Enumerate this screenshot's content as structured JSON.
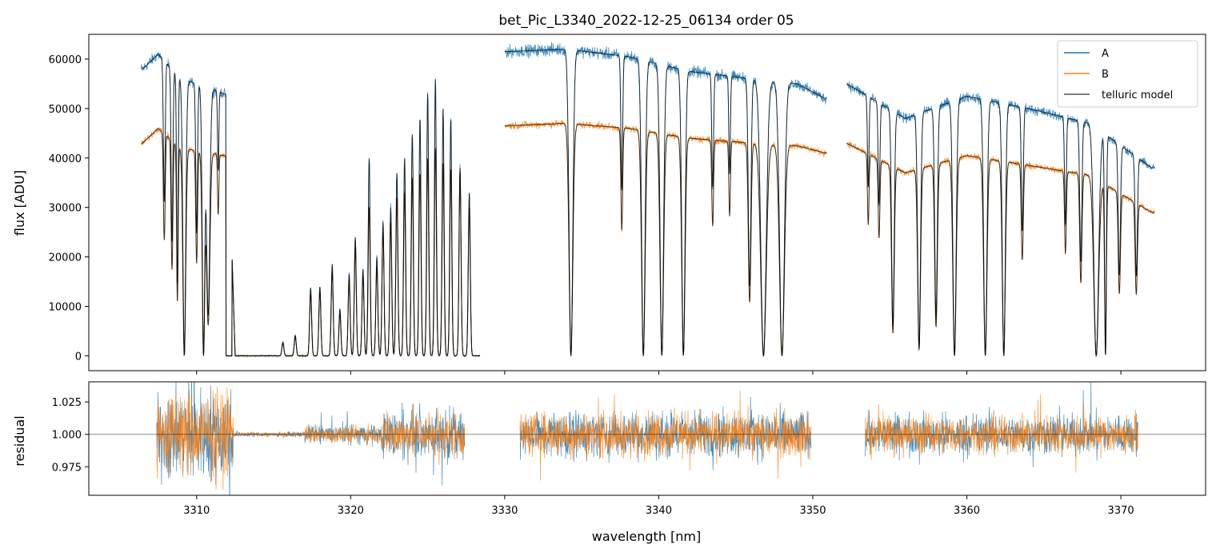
{
  "chart_data": [
    {
      "type": "line",
      "title": "bet_Pic_L3340_2022-12-25_06134  order 05",
      "xlabel": "",
      "ylabel": "flux [ADU]",
      "xlim": [
        3303,
        3375.5
      ],
      "ylim": [
        -3000,
        65000
      ],
      "yticks": [
        0,
        10000,
        20000,
        30000,
        40000,
        50000,
        60000
      ],
      "ytick_labels": [
        "0",
        "10000",
        "20000",
        "30000",
        "40000",
        "50000",
        "60000"
      ],
      "xticks": [
        3310,
        3320,
        3330,
        3340,
        3350,
        3360,
        3370
      ],
      "legend": {
        "placement": "top-right",
        "entries": [
          "A",
          "B",
          "telluric model"
        ]
      },
      "colors": {
        "A": "#1f77b4",
        "B": "#ff7f0e",
        "model": "#000000"
      },
      "segments": [
        {
          "x_start": 3306.4,
          "x_end": 3328.4
        },
        {
          "x_start": 3330.0,
          "x_end": 3350.9
        },
        {
          "x_start": 3352.2,
          "x_end": 3372.2
        }
      ],
      "continuum_A_knots": [
        [
          3306.5,
          58000
        ],
        [
          3307.5,
          61000
        ],
        [
          3309,
          56000
        ],
        [
          3311,
          54000
        ],
        [
          3312.5,
          52000
        ],
        [
          3330,
          61500
        ],
        [
          3334,
          62000
        ],
        [
          3338,
          60500
        ],
        [
          3342,
          57500
        ],
        [
          3346,
          56000
        ],
        [
          3349,
          55000
        ],
        [
          3350.8,
          52000
        ],
        [
          3352.2,
          55000
        ],
        [
          3356,
          48000
        ],
        [
          3360,
          52500
        ],
        [
          3364,
          50000
        ],
        [
          3368,
          47000
        ],
        [
          3372,
          38000
        ]
      ],
      "continuum_B_knots": [
        [
          3306.5,
          43000
        ],
        [
          3307.5,
          46000
        ],
        [
          3309,
          42000
        ],
        [
          3311,
          41000
        ],
        [
          3312.5,
          40000
        ],
        [
          3330,
          46500
        ],
        [
          3334,
          47000
        ],
        [
          3338,
          46000
        ],
        [
          3342,
          44000
        ],
        [
          3346,
          43000
        ],
        [
          3349,
          42500
        ],
        [
          3350.8,
          41000
        ],
        [
          3352.2,
          43000
        ],
        [
          3356,
          37000
        ],
        [
          3360,
          40500
        ],
        [
          3364,
          38500
        ],
        [
          3368,
          36500
        ],
        [
          3372,
          29000
        ]
      ],
      "absorption_lines": [
        {
          "center": 3307.9,
          "depth": 0.48,
          "width": 0.08
        },
        {
          "center": 3308.4,
          "depth": 0.6,
          "width": 0.08
        },
        {
          "center": 3308.75,
          "depth": 0.75,
          "width": 0.07
        },
        {
          "center": 3309.2,
          "depth": 1.0,
          "width": 0.13
        },
        {
          "center": 3310.0,
          "depth": 0.55,
          "width": 0.08
        },
        {
          "center": 3310.45,
          "depth": 1.0,
          "width": 0.12
        },
        {
          "center": 3310.75,
          "depth": 0.85,
          "width": 0.15
        },
        {
          "center": 3311.4,
          "depth": 0.3,
          "width": 0.06
        },
        {
          "center": 3334.3,
          "depth": 1.0,
          "width": 0.17
        },
        {
          "center": 3337.6,
          "depth": 0.45,
          "width": 0.08
        },
        {
          "center": 3339.0,
          "depth": 1.0,
          "width": 0.16
        },
        {
          "center": 3340.2,
          "depth": 1.0,
          "width": 0.16
        },
        {
          "center": 3341.6,
          "depth": 1.0,
          "width": 0.15
        },
        {
          "center": 3343.5,
          "depth": 0.4,
          "width": 0.08
        },
        {
          "center": 3344.6,
          "depth": 0.35,
          "width": 0.07
        },
        {
          "center": 3345.9,
          "depth": 0.75,
          "width": 0.12
        },
        {
          "center": 3346.8,
          "depth": 1.0,
          "width": 0.25
        },
        {
          "center": 3348.0,
          "depth": 1.0,
          "width": 0.22
        },
        {
          "center": 3353.6,
          "depth": 0.35,
          "width": 0.07
        },
        {
          "center": 3354.3,
          "depth": 0.4,
          "width": 0.08
        },
        {
          "center": 3355.2,
          "depth": 0.88,
          "width": 0.12
        },
        {
          "center": 3356.9,
          "depth": 0.97,
          "width": 0.13
        },
        {
          "center": 3358.0,
          "depth": 0.85,
          "width": 0.12
        },
        {
          "center": 3359.2,
          "depth": 1.0,
          "width": 0.15
        },
        {
          "center": 3361.2,
          "depth": 1.0,
          "width": 0.15
        },
        {
          "center": 3362.4,
          "depth": 1.0,
          "width": 0.14
        },
        {
          "center": 3363.6,
          "depth": 0.5,
          "width": 0.09
        },
        {
          "center": 3366.4,
          "depth": 0.45,
          "width": 0.08
        },
        {
          "center": 3367.4,
          "depth": 0.6,
          "width": 0.1
        },
        {
          "center": 3368.4,
          "depth": 1.0,
          "width": 0.22
        },
        {
          "center": 3369.0,
          "depth": 1.0,
          "width": 0.08
        },
        {
          "center": 3369.9,
          "depth": 0.62,
          "width": 0.1
        },
        {
          "center": 3371.0,
          "depth": 0.6,
          "width": 0.1
        }
      ],
      "transmission_peaks": [
        {
          "x": 3315.6,
          "A": 2800,
          "B": 2500
        },
        {
          "x": 3316.4,
          "A": 4200,
          "B": 3800
        },
        {
          "x": 3317.4,
          "A": 13800,
          "B": 12500
        },
        {
          "x": 3318.0,
          "A": 14000,
          "B": 13000
        },
        {
          "x": 3318.8,
          "A": 18500,
          "B": 17000
        },
        {
          "x": 3319.3,
          "A": 9500,
          "B": 8500
        },
        {
          "x": 3319.9,
          "A": 16500,
          "B": 15500
        },
        {
          "x": 3320.3,
          "A": 24000,
          "B": 22000
        },
        {
          "x": 3320.8,
          "A": 17500,
          "B": 16000
        },
        {
          "x": 3321.2,
          "A": 40000,
          "B": 30000
        },
        {
          "x": 3321.7,
          "A": 20000,
          "B": 18000
        },
        {
          "x": 3322.1,
          "A": 27000,
          "B": 25000
        },
        {
          "x": 3322.6,
          "A": 30000,
          "B": 27000
        },
        {
          "x": 3323.0,
          "A": 37000,
          "B": 32000
        },
        {
          "x": 3323.5,
          "A": 40000,
          "B": 33000
        },
        {
          "x": 3324.0,
          "A": 45000,
          "B": 36000
        },
        {
          "x": 3324.5,
          "A": 48000,
          "B": 37000
        },
        {
          "x": 3325.0,
          "A": 53000,
          "B": 40000
        },
        {
          "x": 3325.5,
          "A": 56000,
          "B": 42000
        },
        {
          "x": 3326.0,
          "A": 50000,
          "B": 39000
        },
        {
          "x": 3326.5,
          "A": 48000,
          "B": 38000
        },
        {
          "x": 3327.1,
          "A": 38000,
          "B": 37000
        },
        {
          "x": 3327.7,
          "A": 33000,
          "B": 30000
        }
      ]
    },
    {
      "type": "line",
      "title": "",
      "xlabel": "wavelength [nm]",
      "ylabel": "residual",
      "xlim": [
        3303,
        3375.5
      ],
      "ylim": [
        0.953,
        1.0405
      ],
      "yticks": [
        0.975,
        1.0,
        1.025
      ],
      "ytick_labels": [
        "0.975",
        "1.000",
        "1.025"
      ],
      "xticks": [
        3310,
        3320,
        3330,
        3340,
        3350,
        3360,
        3370
      ],
      "xtick_labels": [
        "3310",
        "3320",
        "3330",
        "3340",
        "3350",
        "3360",
        "3370"
      ],
      "reference_line": 1.0,
      "residual_ranges": [
        {
          "x_start": 3307.4,
          "x_end": 3312.4,
          "amplitude": 0.03
        },
        {
          "x_start": 3312.4,
          "x_end": 3317.0,
          "amplitude": 0.0015
        },
        {
          "x_start": 3317.0,
          "x_end": 3322.0,
          "amplitude": 0.006
        },
        {
          "x_start": 3322.0,
          "x_end": 3327.4,
          "amplitude": 0.016
        },
        {
          "x_start": 3331.0,
          "x_end": 3349.9,
          "amplitude": 0.015
        },
        {
          "x_start": 3353.4,
          "x_end": 3371.1,
          "amplitude": 0.013
        }
      ]
    }
  ]
}
